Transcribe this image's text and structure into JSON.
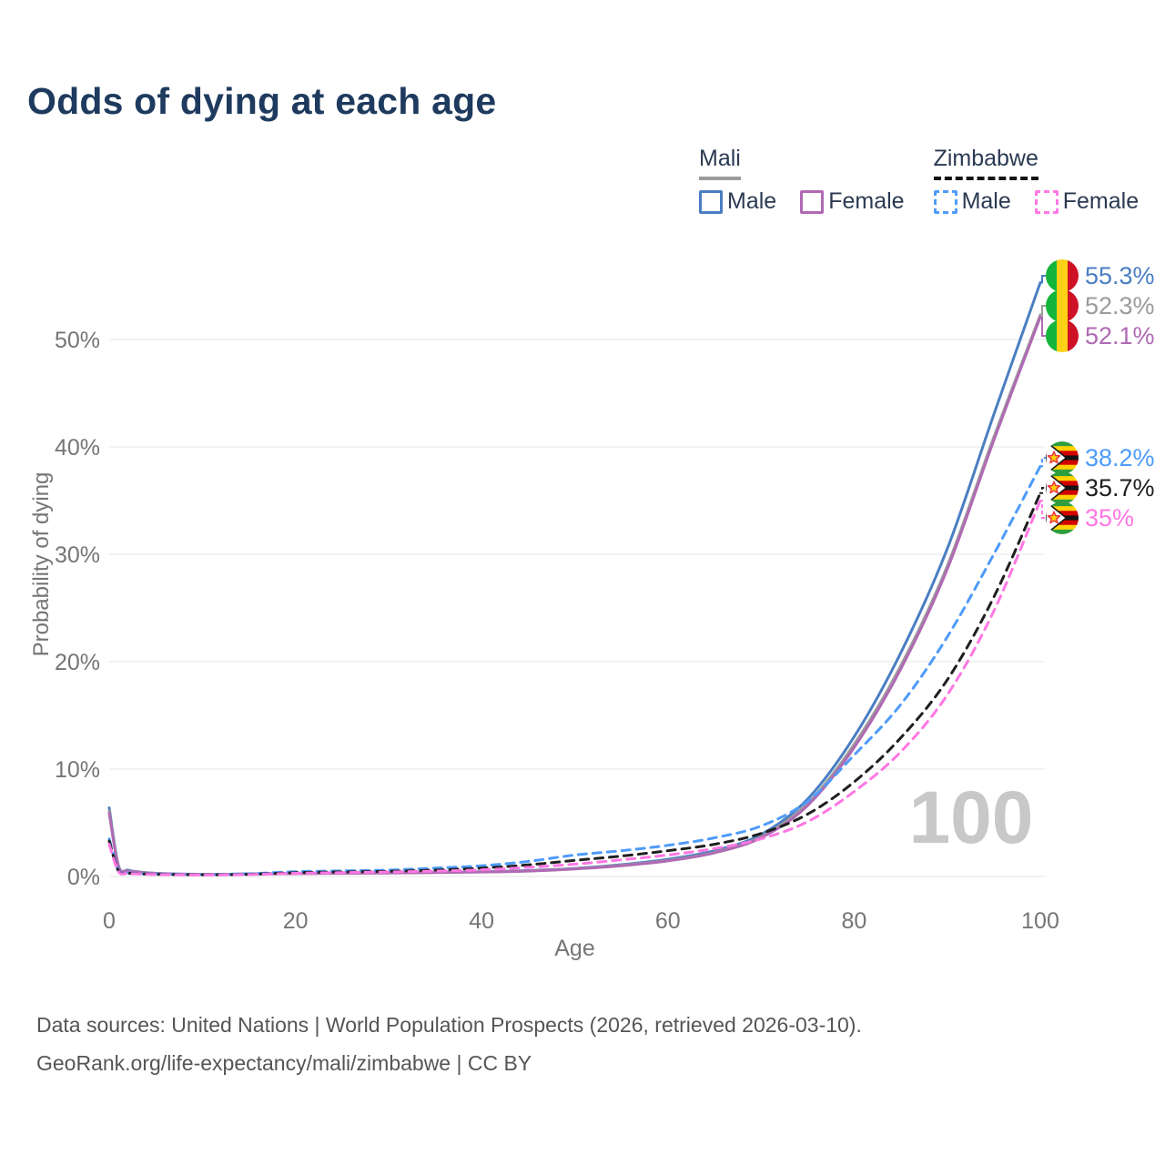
{
  "title": "Odds of dying at each age",
  "watermark": "100",
  "legend": {
    "groups": [
      {
        "name": "Mali",
        "line_style": "solid",
        "underline_color": "#9b9b9b",
        "items": [
          {
            "label": "Male",
            "color": "#4a7ec2",
            "dashed": false
          },
          {
            "label": "Female",
            "color": "#b06ab3",
            "dashed": false
          }
        ]
      },
      {
        "name": "Zimbabwe",
        "line_style": "dashed",
        "underline_color": "#141414",
        "items": [
          {
            "label": "Male",
            "color": "#4e9bfa",
            "dashed": true
          },
          {
            "label": "Female",
            "color": "#ff77e3",
            "dashed": true
          }
        ]
      }
    ]
  },
  "footer": {
    "line1": "Data sources: United Nations | World Population Prospects (2026, retrieved 2026-03-10).",
    "line2": "GeoRank.org/life-expectancy/mali/zimbabwe | CC BY"
  },
  "colors": {
    "title": "#1e3a5e",
    "axis_text": "#757575",
    "grid": "#e9e9e9",
    "watermark": "#c8c8c8",
    "footer_text": "#555555"
  },
  "chart_data": {
    "type": "line",
    "title": "Odds of dying at each age",
    "xlabel": "Age",
    "ylabel": "Probability of dying",
    "xlim": [
      0,
      100
    ],
    "ylim": [
      0,
      57
    ],
    "xticks": [
      0,
      20,
      40,
      60,
      80,
      100
    ],
    "yticks": [
      {
        "value": 0,
        "label": "0%"
      },
      {
        "value": 10,
        "label": "10%"
      },
      {
        "value": 20,
        "label": "20%"
      },
      {
        "value": 30,
        "label": "30%"
      },
      {
        "value": 40,
        "label": "40%"
      },
      {
        "value": 50,
        "label": "50%"
      }
    ],
    "grid": "horizontal",
    "legend_position": "top-right",
    "age_cursor": "100",
    "series": [
      {
        "id": "mali-male",
        "name": "Mali Male",
        "country": "Mali",
        "sex": "Male",
        "color": "#4a7ec2",
        "dashed": false,
        "flag": "mali",
        "end_label": "55.3%",
        "end_value": 55.3,
        "points": [
          [
            0,
            6.4
          ],
          [
            1,
            1.0
          ],
          [
            2,
            0.6
          ],
          [
            3,
            0.45
          ],
          [
            5,
            0.3
          ],
          [
            10,
            0.2
          ],
          [
            15,
            0.25
          ],
          [
            20,
            0.3
          ],
          [
            25,
            0.33
          ],
          [
            30,
            0.36
          ],
          [
            35,
            0.4
          ],
          [
            40,
            0.45
          ],
          [
            45,
            0.55
          ],
          [
            50,
            0.75
          ],
          [
            55,
            1.1
          ],
          [
            60,
            1.6
          ],
          [
            65,
            2.4
          ],
          [
            70,
            3.9
          ],
          [
            75,
            7.2
          ],
          [
            80,
            13.0
          ],
          [
            85,
            20.8
          ],
          [
            90,
            30.5
          ],
          [
            95,
            43.0
          ],
          [
            100,
            55.3
          ]
        ]
      },
      {
        "id": "mali-both",
        "name": "Mali",
        "country": "Mali",
        "sex": "Both",
        "color": "#9b9b9b",
        "dashed": false,
        "flag": "mali",
        "end_label": "52.3%",
        "end_value": 52.3,
        "points": [
          [
            0,
            6.1
          ],
          [
            1,
            0.95
          ],
          [
            2,
            0.55
          ],
          [
            3,
            0.42
          ],
          [
            5,
            0.28
          ],
          [
            10,
            0.19
          ],
          [
            15,
            0.23
          ],
          [
            20,
            0.28
          ],
          [
            25,
            0.31
          ],
          [
            30,
            0.34
          ],
          [
            35,
            0.38
          ],
          [
            40,
            0.43
          ],
          [
            45,
            0.52
          ],
          [
            50,
            0.72
          ],
          [
            55,
            1.05
          ],
          [
            60,
            1.5
          ],
          [
            65,
            2.25
          ],
          [
            70,
            3.7
          ],
          [
            75,
            6.8
          ],
          [
            80,
            12.3
          ],
          [
            85,
            19.6
          ],
          [
            90,
            28.9
          ],
          [
            95,
            40.9
          ],
          [
            100,
            52.3
          ]
        ]
      },
      {
        "id": "mali-female",
        "name": "Mali Female",
        "country": "Mali",
        "sex": "Female",
        "color": "#b06ab3",
        "dashed": false,
        "flag": "mali",
        "end_label": "52.1%",
        "end_value": 52.1,
        "points": [
          [
            0,
            5.9
          ],
          [
            1,
            0.9
          ],
          [
            2,
            0.52
          ],
          [
            3,
            0.4
          ],
          [
            5,
            0.27
          ],
          [
            10,
            0.18
          ],
          [
            15,
            0.22
          ],
          [
            20,
            0.26
          ],
          [
            25,
            0.29
          ],
          [
            30,
            0.32
          ],
          [
            35,
            0.36
          ],
          [
            40,
            0.41
          ],
          [
            45,
            0.5
          ],
          [
            50,
            0.7
          ],
          [
            55,
            1.0
          ],
          [
            60,
            1.45
          ],
          [
            65,
            2.2
          ],
          [
            70,
            3.6
          ],
          [
            75,
            6.6
          ],
          [
            80,
            12.0
          ],
          [
            85,
            19.3
          ],
          [
            90,
            28.6
          ],
          [
            95,
            40.6
          ],
          [
            100,
            52.1
          ]
        ]
      },
      {
        "id": "zimbabwe-male",
        "name": "Zimbabwe Male",
        "country": "Zimbabwe",
        "sex": "Male",
        "color": "#4e9bfa",
        "dashed": true,
        "flag": "zimbabwe",
        "end_label": "38.2%",
        "end_value": 38.2,
        "points": [
          [
            0,
            3.5
          ],
          [
            1,
            0.55
          ],
          [
            2,
            0.35
          ],
          [
            3,
            0.28
          ],
          [
            5,
            0.22
          ],
          [
            10,
            0.18
          ],
          [
            15,
            0.25
          ],
          [
            20,
            0.45
          ],
          [
            25,
            0.52
          ],
          [
            30,
            0.6
          ],
          [
            35,
            0.78
          ],
          [
            40,
            1.0
          ],
          [
            45,
            1.4
          ],
          [
            50,
            2.0
          ],
          [
            55,
            2.4
          ],
          [
            60,
            2.9
          ],
          [
            65,
            3.6
          ],
          [
            70,
            4.7
          ],
          [
            75,
            7.0
          ],
          [
            80,
            11.3
          ],
          [
            85,
            16.0
          ],
          [
            90,
            22.3
          ],
          [
            95,
            30.0
          ],
          [
            100,
            38.2
          ]
        ]
      },
      {
        "id": "zimbabwe-both",
        "name": "Zimbabwe",
        "country": "Zimbabwe",
        "sex": "Both",
        "color": "#1f1f1f",
        "dashed": true,
        "flag": "zimbabwe",
        "end_label": "35.7%",
        "end_value": 35.7,
        "points": [
          [
            0,
            3.3
          ],
          [
            1,
            0.5
          ],
          [
            2,
            0.32
          ],
          [
            3,
            0.26
          ],
          [
            5,
            0.2
          ],
          [
            10,
            0.16
          ],
          [
            15,
            0.2
          ],
          [
            20,
            0.35
          ],
          [
            25,
            0.42
          ],
          [
            30,
            0.48
          ],
          [
            35,
            0.6
          ],
          [
            40,
            0.78
          ],
          [
            45,
            1.08
          ],
          [
            50,
            1.5
          ],
          [
            55,
            1.9
          ],
          [
            60,
            2.4
          ],
          [
            65,
            3.0
          ],
          [
            70,
            4.0
          ],
          [
            75,
            5.8
          ],
          [
            80,
            8.8
          ],
          [
            85,
            12.9
          ],
          [
            90,
            18.3
          ],
          [
            95,
            26.0
          ],
          [
            100,
            35.7
          ]
        ]
      },
      {
        "id": "zimbabwe-female",
        "name": "Zimbabwe Female",
        "country": "Zimbabwe",
        "sex": "Female",
        "color": "#ff77e3",
        "dashed": true,
        "flag": "zimbabwe",
        "end_label": "35%",
        "end_value": 35.0,
        "points": [
          [
            0,
            3.0
          ],
          [
            1,
            0.45
          ],
          [
            2,
            0.3
          ],
          [
            3,
            0.24
          ],
          [
            5,
            0.18
          ],
          [
            10,
            0.15
          ],
          [
            15,
            0.18
          ],
          [
            20,
            0.3
          ],
          [
            25,
            0.36
          ],
          [
            30,
            0.42
          ],
          [
            35,
            0.5
          ],
          [
            40,
            0.62
          ],
          [
            45,
            0.85
          ],
          [
            50,
            1.15
          ],
          [
            55,
            1.55
          ],
          [
            60,
            2.0
          ],
          [
            65,
            2.6
          ],
          [
            70,
            3.5
          ],
          [
            75,
            5.1
          ],
          [
            80,
            7.9
          ],
          [
            85,
            11.6
          ],
          [
            90,
            16.9
          ],
          [
            95,
            24.7
          ],
          [
            100,
            35.0
          ]
        ]
      }
    ]
  }
}
